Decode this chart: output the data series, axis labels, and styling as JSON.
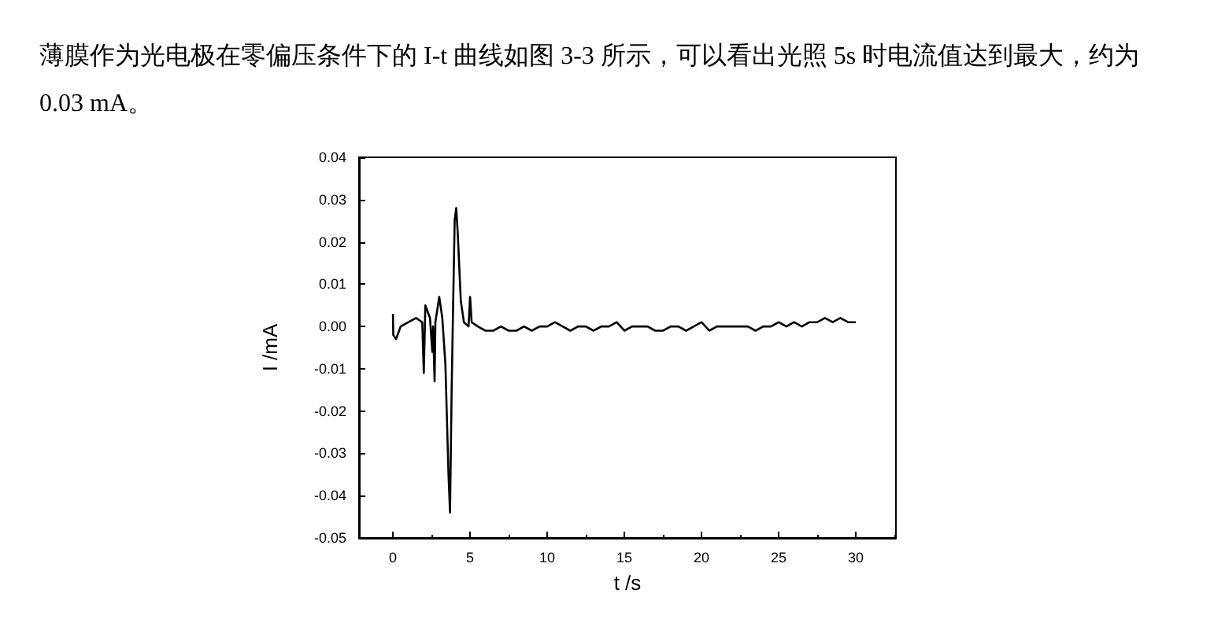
{
  "chart_data": {
    "type": "line",
    "title": "薄膜作为光电极在零偏压条件下的 I-t 曲线如图 3-3 所示，可以看出光照 5s 时电流值达到最大，约为 0.03 mA。",
    "xlabel": "t /s",
    "ylabel": "I /mA",
    "xlim": [
      -2.2,
      32.6
    ],
    "xticks": [
      0,
      5,
      10,
      15,
      20,
      25,
      30
    ],
    "ylim": [
      -0.05,
      0.04
    ],
    "yticks": [
      -0.05,
      -0.04,
      -0.03,
      -0.02,
      -0.01,
      {
        "value": 0,
        "label": "0.00"
      },
      0.01,
      0.02,
      0.03,
      0.04
    ],
    "grid": false,
    "marker": "none",
    "line_style": "solid",
    "series": [
      {
        "color": "#000000",
        "x": [
          0,
          0.02,
          0.2,
          0.5,
          1,
          1.5,
          1.9,
          2.0,
          2.1,
          2.4,
          2.55,
          2.6,
          2.7,
          2.75,
          2.8,
          3.0,
          3.2,
          3.4,
          3.6,
          3.7,
          3.8,
          3.9,
          4.0,
          4.1,
          4.2,
          4.4,
          4.6,
          4.9,
          5.0,
          5.1,
          5.5,
          6,
          6.5,
          7,
          7.5,
          8,
          8.5,
          9,
          9.5,
          10,
          10.5,
          11,
          11.5,
          12,
          12.5,
          13,
          13.5,
          14,
          14.5,
          15,
          15.5,
          16,
          16.5,
          17,
          17.5,
          18,
          18.5,
          19,
          19.5,
          20,
          20.5,
          21,
          21.5,
          22,
          22.5,
          23,
          23.5,
          24,
          24.5,
          25,
          25.5,
          26,
          26.5,
          27,
          27.5,
          28,
          28.5,
          29,
          29.5,
          30
        ],
        "values": [
          0.003,
          -0.002,
          -0.003,
          0.0,
          0.001,
          0.002,
          0.001,
          -0.011,
          0.005,
          0.002,
          -0.006,
          0.0,
          -0.013,
          0.001,
          0.001,
          0.007,
          0.002,
          -0.009,
          -0.035,
          -0.044,
          -0.016,
          0.005,
          0.025,
          0.028,
          0.022,
          0.006,
          0.001,
          0.0,
          0.007,
          0.001,
          0.0,
          -0.001,
          -0.001,
          0.0,
          -0.001,
          -0.001,
          0.0,
          -0.001,
          0.0,
          0.0,
          0.001,
          0.0,
          -0.001,
          0.0,
          0.0,
          -0.001,
          0.0,
          0.0,
          0.001,
          -0.001,
          0.0,
          0.0,
          0.0,
          -0.001,
          -0.001,
          0.0,
          0.0,
          -0.001,
          0.0,
          0.001,
          -0.001,
          0.0,
          0.0,
          0.0,
          0.0,
          0.0,
          -0.001,
          0.0,
          0.0,
          0.001,
          0.0,
          0.001,
          0.0,
          0.001,
          0.001,
          0.002,
          0.001,
          0.002,
          0.001,
          0.001
        ]
      }
    ]
  }
}
